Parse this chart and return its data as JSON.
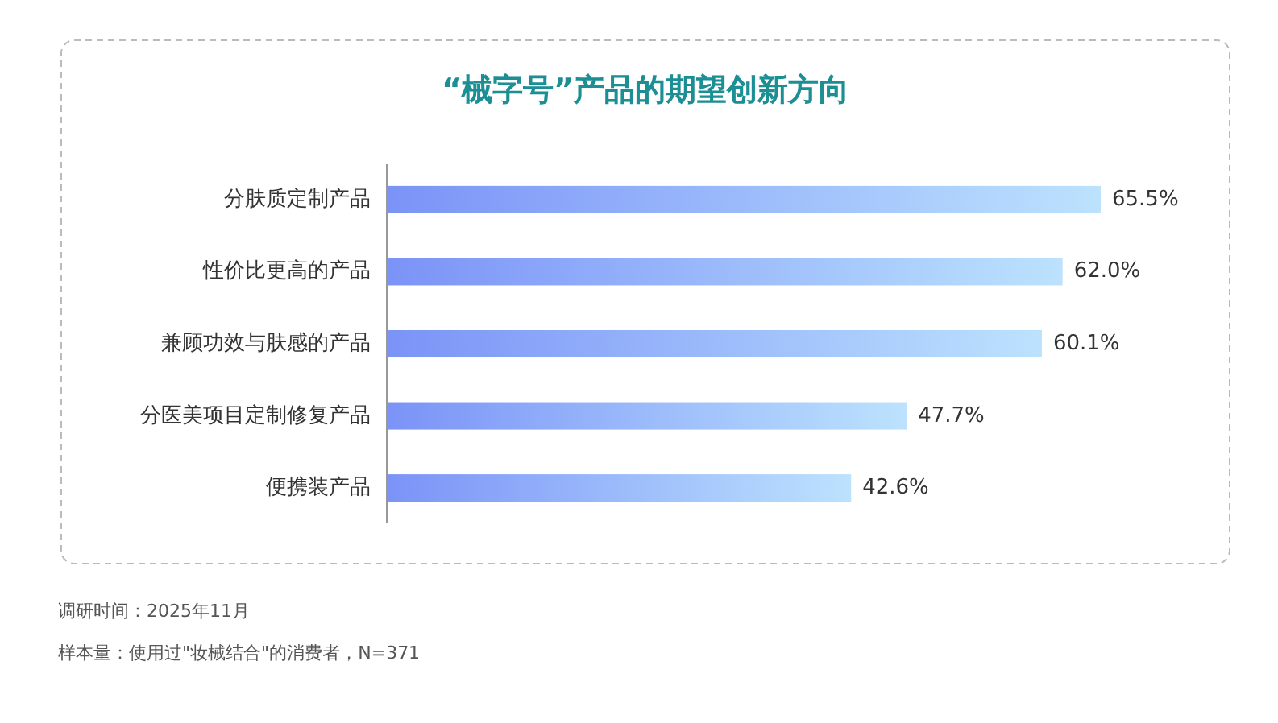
{
  "chart_data": {
    "type": "bar",
    "orientation": "horizontal",
    "title": "“械字号”产品的期望创新方向",
    "categories": [
      "分肤质定制产品",
      "性价比更高的产品",
      "兼顾功效与肤感的产品",
      "分医美项目定制修复产品",
      "便携装产品"
    ],
    "values": [
      65.5,
      62.0,
      60.1,
      47.7,
      42.6
    ],
    "value_labels": [
      "65.5%",
      "62.0%",
      "60.1%",
      "47.7%",
      "42.6%"
    ],
    "color": "#7b93f7",
    "annotations": [
      "调研时间：2025年11月",
      "样本量：使用过\"妆械结合\"的消费者，N=371"
    ]
  }
}
